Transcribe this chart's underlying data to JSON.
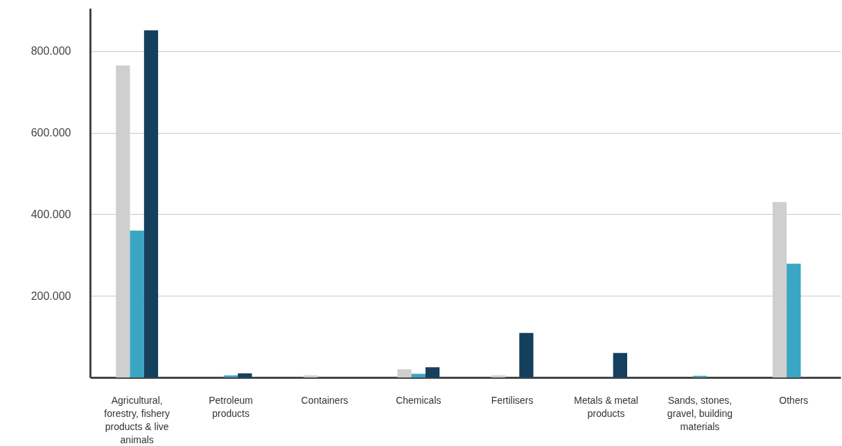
{
  "chart_data": {
    "type": "bar",
    "categories": [
      "Agricultural, forestry, fishery products & live animals",
      "Petroleum products",
      "Containers",
      "Chemicals",
      "Fertilisers",
      "Metals & metal products",
      "Sands, stones, gravel, building materials",
      "Others"
    ],
    "series": [
      {
        "color": "#cfcfcf",
        "values": [
          765000,
          null,
          5000,
          20000,
          5000,
          null,
          null,
          430000
        ]
      },
      {
        "color": "#3ba6c3",
        "values": [
          360000,
          5000,
          null,
          9000,
          null,
          null,
          4000,
          279000
        ]
      },
      {
        "color": "#14405e",
        "values": [
          851000,
          10000,
          null,
          25000,
          109000,
          60000,
          null,
          null
        ]
      }
    ],
    "ylim": [
      0,
      905000
    ],
    "yticks": [
      {
        "value": 200000,
        "label": "200.000"
      },
      {
        "value": 400000,
        "label": "400.000"
      },
      {
        "value": 600000,
        "label": "600.000"
      },
      {
        "value": 800000,
        "label": "800.000"
      }
    ],
    "grid": "y"
  }
}
